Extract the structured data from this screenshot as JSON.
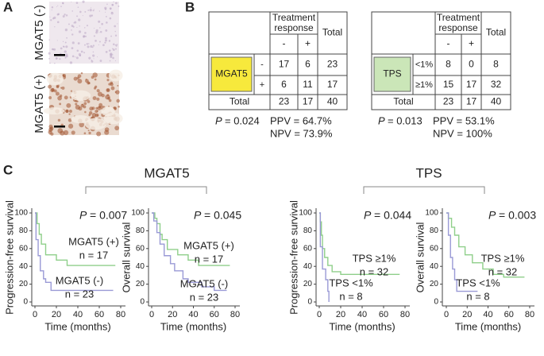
{
  "panel_labels": [
    "A",
    "B",
    "C"
  ],
  "panel_a": {
    "row_labels": [
      "MGAT5 (-)",
      "MGAT5 (+)"
    ]
  },
  "panel_b": {
    "tables": [
      {
        "marker": "MGAT5",
        "header": "Treatment response",
        "total_header": "Total",
        "sub_headers": [
          "-",
          "+"
        ],
        "rows": [
          {
            "label": "-",
            "values": [
              17,
              6,
              23
            ]
          },
          {
            "label": "+",
            "values": [
              6,
              11,
              17
            ]
          }
        ],
        "total_row": {
          "label": "Total",
          "values": [
            23,
            17,
            40
          ]
        },
        "p": {
          "symbol": "P",
          "value": "= 0.024"
        },
        "ppv": "PPV = 64.7%",
        "npv": "NPV = 73.9%"
      },
      {
        "marker": "TPS",
        "header": "Treatment response",
        "total_header": "Total",
        "sub_headers": [
          "-",
          "+"
        ],
        "rows": [
          {
            "label": "<1%",
            "values": [
              8,
              0,
              8
            ]
          },
          {
            "label": "≥1%",
            "values": [
              15,
              17,
              32
            ]
          }
        ],
        "total_row": {
          "label": "Total",
          "values": [
            23,
            17,
            40
          ]
        },
        "p": {
          "symbol": "P",
          "value": "= 0.013"
        },
        "ppv": "PPV = 53.1%",
        "npv": "NPV = 100%"
      }
    ]
  },
  "panel_c": {
    "groups": [
      "MGAT5",
      "TPS"
    ]
  },
  "chart_data": [
    {
      "type": "line",
      "x_label": "Time (months)",
      "y_label": "Progression-free survival",
      "xlim": [
        0,
        80
      ],
      "ylim": [
        0,
        100
      ],
      "xticks": [
        0,
        20,
        40,
        60,
        80
      ],
      "yticks": [
        0,
        20,
        40,
        60,
        80,
        100
      ],
      "p": {
        "symbol": "P",
        "value": "= 0.007"
      },
      "series": [
        {
          "name": "MGAT5 (+)",
          "n": "n = 17",
          "color": "#8fcf8a",
          "x": [
            0,
            2,
            4,
            6,
            10,
            20,
            30,
            75
          ],
          "values": [
            100,
            88,
            76,
            65,
            53,
            47,
            41,
            41
          ]
        },
        {
          "name": "MGAT5 (-)",
          "n": "n = 23",
          "color": "#9a9ad6",
          "x": [
            0,
            1,
            3,
            5,
            8,
            10,
            15,
            73
          ],
          "values": [
            100,
            70,
            52,
            35,
            26,
            22,
            13,
            13
          ]
        }
      ]
    },
    {
      "type": "line",
      "x_label": "Time (months)",
      "y_label": "Overall survival",
      "xlim": [
        0,
        80
      ],
      "ylim": [
        0,
        100
      ],
      "xticks": [
        0,
        20,
        40,
        60,
        80
      ],
      "yticks": [
        0,
        20,
        40,
        60,
        80,
        100
      ],
      "p": {
        "symbol": "P",
        "value": "= 0.045"
      },
      "series": [
        {
          "name": "MGAT5 (+)",
          "n": "n = 17",
          "color": "#8fcf8a",
          "x": [
            0,
            3,
            5,
            8,
            10,
            15,
            25,
            35,
            45,
            75
          ],
          "values": [
            100,
            94,
            88,
            76,
            70,
            59,
            53,
            47,
            41,
            41
          ]
        },
        {
          "name": "MGAT5 (-)",
          "n": "n = 23",
          "color": "#9a9ad6",
          "x": [
            0,
            2,
            5,
            8,
            12,
            18,
            22,
            30,
            35,
            48,
            60,
            72
          ],
          "values": [
            100,
            91,
            78,
            65,
            52,
            43,
            35,
            26,
            22,
            17,
            13,
            13
          ]
        }
      ]
    },
    {
      "type": "line",
      "x_label": "Time (months)",
      "y_label": "Progression-free survival",
      "xlim": [
        0,
        80
      ],
      "ylim": [
        0,
        100
      ],
      "xticks": [
        0,
        20,
        40,
        60,
        80
      ],
      "yticks": [
        0,
        20,
        40,
        60,
        80,
        100
      ],
      "p": {
        "symbol": "P",
        "value": "= 0.044"
      },
      "series": [
        {
          "name": "TPS ≥1%",
          "n": "n = 32",
          "color": "#8fcf8a",
          "x": [
            0,
            1,
            2,
            3,
            5,
            8,
            12,
            20,
            75
          ],
          "values": [
            100,
            90,
            75,
            60,
            50,
            41,
            34,
            31,
            31
          ]
        },
        {
          "name": "TPS <1%",
          "n": "n = 8",
          "color": "#9a9ad6",
          "x": [
            0,
            1,
            3,
            6,
            8,
            9
          ],
          "values": [
            100,
            62,
            37,
            25,
            12,
            0
          ]
        }
      ]
    },
    {
      "type": "line",
      "x_label": "Time (months)",
      "y_label": "Overall survival",
      "xlim": [
        0,
        80
      ],
      "ylim": [
        0,
        100
      ],
      "xticks": [
        0,
        20,
        40,
        60,
        80
      ],
      "yticks": [
        0,
        20,
        40,
        60,
        80,
        100
      ],
      "p": {
        "symbol": "P",
        "value": "= 0.003"
      },
      "series": [
        {
          "name": "TPS ≥1%",
          "n": "n = 32",
          "color": "#8fcf8a",
          "x": [
            0,
            2,
            5,
            8,
            12,
            18,
            25,
            35,
            45,
            55,
            75
          ],
          "values": [
            100,
            94,
            84,
            75,
            62,
            53,
            44,
            37,
            31,
            28,
            28
          ]
        },
        {
          "name": "TPS <1%",
          "n": "n = 8",
          "color": "#9a9ad6",
          "x": [
            0,
            2,
            4,
            6,
            8,
            10,
            30
          ],
          "values": [
            100,
            75,
            50,
            37,
            25,
            12,
            12
          ]
        }
      ]
    }
  ]
}
